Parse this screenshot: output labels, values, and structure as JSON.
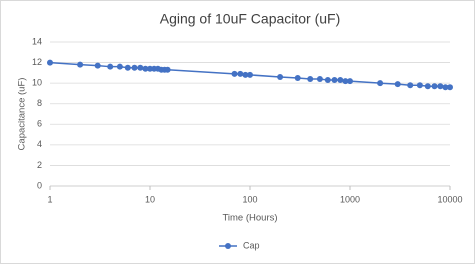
{
  "chart_data": {
    "type": "line",
    "title": "Aging of 10uF Capacitor (uF)",
    "x_label": "Time (Hours)",
    "y_label": "Capacitance (uF)",
    "x": [
      1,
      2,
      3,
      4,
      5,
      6,
      7,
      8,
      9,
      10,
      11,
      12,
      13,
      14,
      15,
      70,
      80,
      90,
      100,
      200,
      300,
      400,
      500,
      600,
      700,
      800,
      900,
      1000,
      2000,
      3000,
      4000,
      5000,
      6000,
      7000,
      8000,
      9000,
      10000
    ],
    "series": [
      {
        "name": "Cap",
        "color": "#4472c4",
        "values": [
          12.0,
          11.8,
          11.7,
          11.6,
          11.6,
          11.5,
          11.5,
          11.5,
          11.4,
          11.4,
          11.4,
          11.4,
          11.3,
          11.3,
          11.3,
          10.9,
          10.9,
          10.8,
          10.8,
          10.6,
          10.5,
          10.4,
          10.4,
          10.3,
          10.3,
          10.3,
          10.2,
          10.2,
          10.0,
          9.9,
          9.8,
          9.8,
          9.7,
          9.7,
          9.7,
          9.6,
          9.6
        ]
      }
    ],
    "xscale": "log",
    "xlim": [
      1,
      10000
    ],
    "xticks": [
      1,
      10,
      100,
      1000,
      10000
    ],
    "ylim": [
      0,
      14
    ],
    "yticks": [
      0,
      2,
      4,
      6,
      8,
      10,
      12,
      14
    ],
    "grid": true,
    "legend": "bottom"
  }
}
